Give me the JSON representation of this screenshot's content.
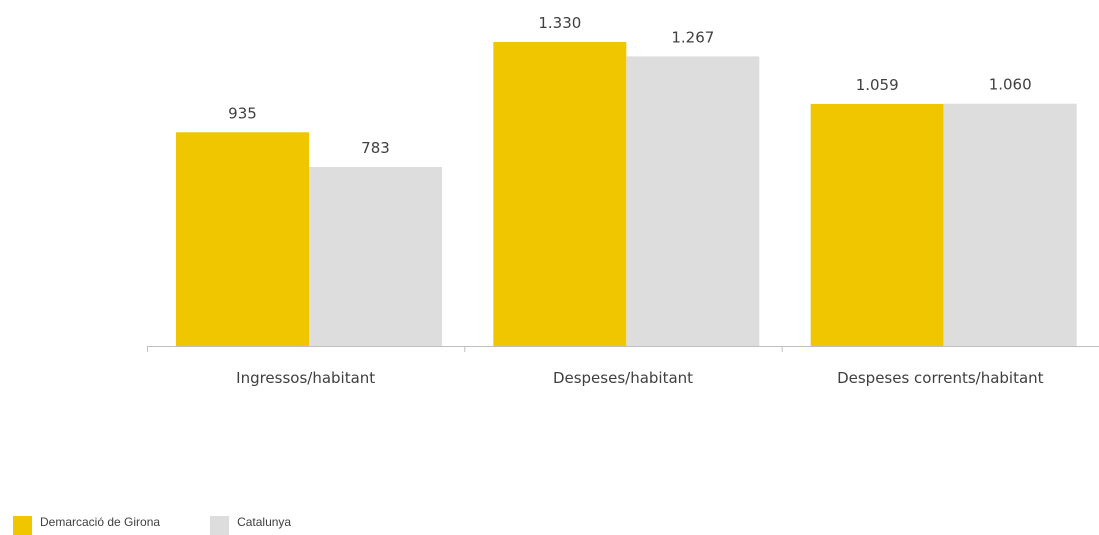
{
  "chart_data": {
    "type": "bar",
    "categories": [
      "Ingressos/habitant",
      "Despeses/habitant",
      "Despeses corrents/habitant"
    ],
    "series": [
      {
        "name": "Demarcació de Girona",
        "values": [
          935,
          1330,
          1059
        ],
        "labels": [
          "935",
          "1.330",
          "1.059"
        ],
        "color": "#F0C600"
      },
      {
        "name": "Catalunya",
        "values": [
          783,
          1267,
          1060
        ],
        "labels": [
          "783",
          "1.267",
          "1.060"
        ],
        "color": "#DDDDDD"
      }
    ],
    "ylim": [
      0,
      1330
    ],
    "grid": false,
    "legend_position": "bottom-left",
    "axis_color": "#BFBFBF",
    "label_color": "#404040"
  }
}
